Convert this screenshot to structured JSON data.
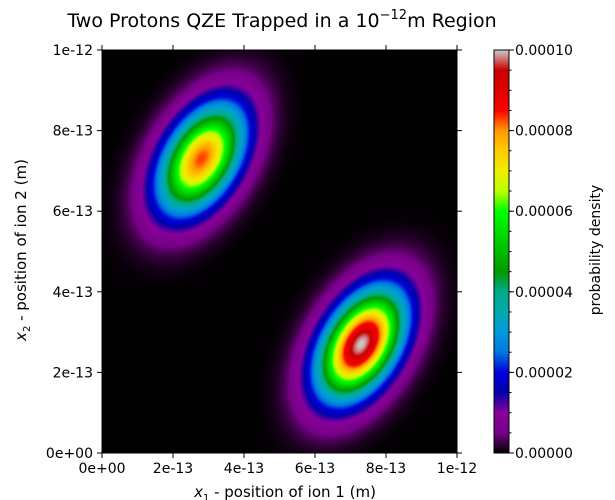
{
  "chart_data": {
    "type": "heatmap",
    "title": "Two Protons QZE Trapped in a 10",
    "title_exponent": "−12",
    "title_suffix": "m Region",
    "xlabel_symbol": "x",
    "xlabel_subscript": "1",
    "xlabel_text": " - position of ion 1 (m)",
    "ylabel_symbol": "x",
    "ylabel_subscript": "2",
    "ylabel_text": " - position of ion 2 (m)",
    "xlim": [
      0,
      1e-12
    ],
    "ylim": [
      0,
      1e-12
    ],
    "x_ticks": [
      {
        "value": 0,
        "label": "0e+00"
      },
      {
        "value": 2e-13,
        "label": "2e-13"
      },
      {
        "value": 4e-13,
        "label": "4e-13"
      },
      {
        "value": 6e-13,
        "label": "6e-13"
      },
      {
        "value": 8e-13,
        "label": "8e-13"
      },
      {
        "value": 1e-12,
        "label": "1e-12"
      }
    ],
    "y_ticks": [
      {
        "value": 0,
        "label": "0e+00"
      },
      {
        "value": 2e-13,
        "label": "2e-13"
      },
      {
        "value": 4e-13,
        "label": "4e-13"
      },
      {
        "value": 6e-13,
        "label": "6e-13"
      },
      {
        "value": 8e-13,
        "label": "8e-13"
      },
      {
        "value": 1e-12,
        "label": "1e-12"
      }
    ],
    "colorbar": {
      "label": "probability density",
      "min": 0,
      "max": 0.0001,
      "colormap": "nipy_spectral",
      "ticks": [
        {
          "value": 0,
          "label": "0.00000"
        },
        {
          "value": 2e-05,
          "label": "0.00002"
        },
        {
          "value": 4e-05,
          "label": "0.00004"
        },
        {
          "value": 6e-05,
          "label": "0.00006"
        },
        {
          "value": 8e-05,
          "label": "0.00008"
        },
        {
          "value": 0.0001,
          "label": "0.00010"
        }
      ]
    },
    "peaks": [
      {
        "x_center": 2.8e-13,
        "y_center": 7.3e-13,
        "max_density": 8.3e-05,
        "orientation_deg": 52,
        "spread_major": 2.2e-13,
        "spread_minor": 1.35e-13
      },
      {
        "x_center": 7.3e-13,
        "y_center": 2.7e-13,
        "max_density": 0.0001,
        "orientation_deg": 52,
        "spread_major": 2.2e-13,
        "spread_minor": 1.35e-13
      }
    ]
  }
}
